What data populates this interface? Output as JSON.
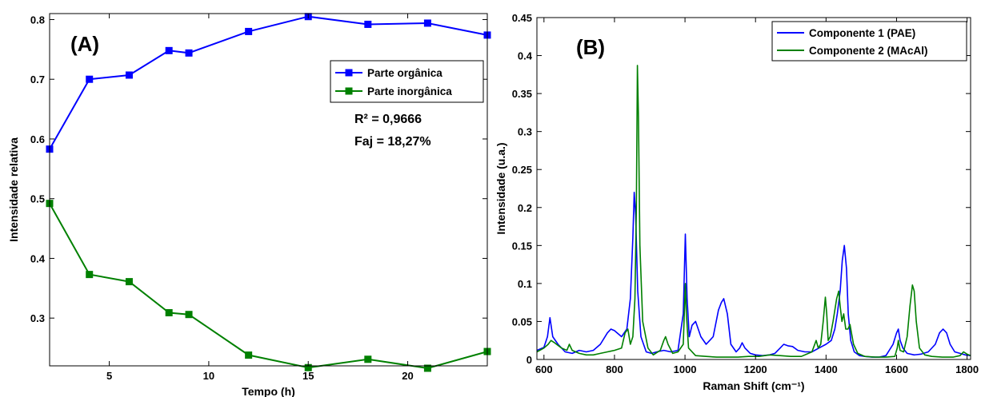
{
  "chart_data": [
    {
      "type": "line",
      "panel_label": "(A)",
      "xlabel": "Tempo (h)",
      "ylabel": "Intensidade relativa",
      "xlim": [
        2,
        24
      ],
      "ylim": [
        0.22,
        0.81
      ],
      "xticks": [
        5,
        10,
        15,
        20
      ],
      "yticks": [
        0.3,
        0.4,
        0.5,
        0.6,
        0.7,
        0.8
      ],
      "x": [
        2,
        4,
        6,
        8,
        9,
        12,
        15,
        18,
        21,
        24
      ],
      "series": [
        {
          "name": "Parte orgânica",
          "color": "#0000ff",
          "marker": "square",
          "values": [
            0.583,
            0.7,
            0.707,
            0.748,
            0.744,
            0.78,
            0.805,
            0.792,
            0.794,
            0.774
          ]
        },
        {
          "name": "Parte inorgânica",
          "color": "#008000",
          "marker": "square",
          "values": [
            0.492,
            0.373,
            0.361,
            0.309,
            0.306,
            0.238,
            0.217,
            0.231,
            0.216,
            0.244
          ]
        }
      ],
      "legend": "top-right",
      "annotations": [
        "R² = 0,9666",
        "Faj = 18,27%"
      ]
    },
    {
      "type": "line",
      "panel_label": "(B)",
      "xlabel": "Raman Shift (cm⁻¹)",
      "ylabel": "Intensidade (u.a.)",
      "xlim": [
        580,
        1810
      ],
      "ylim": [
        0,
        0.45
      ],
      "xticks": [
        600,
        800,
        1000,
        1200,
        1400,
        1600,
        1800
      ],
      "yticks": [
        0,
        0.05,
        0.1,
        0.15,
        0.2,
        0.25,
        0.3,
        0.35,
        0.4,
        0.45
      ],
      "ytick_labels": [
        "0",
        "0.05",
        "0.1",
        "0.15",
        "0.2",
        "0.25",
        "0.3",
        "0.35",
        "0.4",
        "0.45"
      ],
      "series": [
        {
          "name": "Componente 1 (PAE)",
          "color": "#0000ff",
          "x": [
            580,
            600,
            610,
            617,
            625,
            640,
            660,
            680,
            700,
            720,
            740,
            760,
            780,
            790,
            800,
            820,
            835,
            845,
            852,
            856,
            860,
            866,
            875,
            890,
            905,
            920,
            940,
            960,
            980,
            995,
            1001,
            1006,
            1012,
            1020,
            1030,
            1045,
            1060,
            1080,
            1095,
            1103,
            1110,
            1120,
            1130,
            1145,
            1155,
            1162,
            1170,
            1185,
            1200,
            1220,
            1240,
            1255,
            1270,
            1280,
            1292,
            1305,
            1320,
            1340,
            1360,
            1380,
            1400,
            1415,
            1425,
            1432,
            1440,
            1446,
            1452,
            1458,
            1463,
            1470,
            1480,
            1495,
            1510,
            1530,
            1550,
            1570,
            1590,
            1600,
            1605,
            1610,
            1618,
            1630,
            1650,
            1670,
            1690,
            1710,
            1722,
            1732,
            1742,
            1752,
            1765,
            1780,
            1795,
            1810
          ],
          "values": [
            0.012,
            0.016,
            0.03,
            0.055,
            0.03,
            0.02,
            0.01,
            0.008,
            0.012,
            0.01,
            0.012,
            0.02,
            0.035,
            0.04,
            0.038,
            0.03,
            0.04,
            0.08,
            0.16,
            0.22,
            0.19,
            0.09,
            0.03,
            0.01,
            0.008,
            0.01,
            0.012,
            0.01,
            0.012,
            0.06,
            0.165,
            0.08,
            0.03,
            0.045,
            0.05,
            0.03,
            0.02,
            0.03,
            0.065,
            0.075,
            0.08,
            0.06,
            0.02,
            0.01,
            0.015,
            0.022,
            0.015,
            0.008,
            0.006,
            0.005,
            0.006,
            0.008,
            0.015,
            0.02,
            0.018,
            0.017,
            0.012,
            0.01,
            0.01,
            0.015,
            0.02,
            0.025,
            0.04,
            0.06,
            0.09,
            0.13,
            0.15,
            0.12,
            0.06,
            0.025,
            0.01,
            0.005,
            0.004,
            0.003,
            0.003,
            0.005,
            0.02,
            0.035,
            0.04,
            0.025,
            0.015,
            0.008,
            0.006,
            0.007,
            0.01,
            0.02,
            0.035,
            0.04,
            0.035,
            0.02,
            0.01,
            0.008,
            0.006,
            0.005
          ]
        },
        {
          "name": "Componente 2 (MAcAl)",
          "color": "#008000",
          "x": [
            580,
            600,
            612,
            620,
            630,
            650,
            665,
            672,
            680,
            700,
            720,
            740,
            760,
            780,
            800,
            820,
            830,
            838,
            845,
            852,
            858,
            862,
            865,
            868,
            872,
            880,
            895,
            910,
            930,
            940,
            945,
            952,
            965,
            980,
            995,
            998,
            1001,
            1004,
            1010,
            1030,
            1060,
            1090,
            1120,
            1150,
            1180,
            1210,
            1240,
            1270,
            1300,
            1330,
            1360,
            1372,
            1378,
            1385,
            1392,
            1398,
            1402,
            1406,
            1412,
            1420,
            1430,
            1436,
            1440,
            1445,
            1450,
            1456,
            1462,
            1468,
            1472,
            1478,
            1490,
            1510,
            1540,
            1570,
            1595,
            1602,
            1605,
            1610,
            1620,
            1630,
            1638,
            1645,
            1650,
            1656,
            1665,
            1680,
            1700,
            1730,
            1760,
            1780,
            1790,
            1800,
            1810
          ],
          "values": [
            0.01,
            0.015,
            0.02,
            0.025,
            0.022,
            0.015,
            0.012,
            0.02,
            0.012,
            0.008,
            0.006,
            0.006,
            0.008,
            0.01,
            0.012,
            0.015,
            0.035,
            0.04,
            0.02,
            0.03,
            0.08,
            0.2,
            0.387,
            0.32,
            0.15,
            0.05,
            0.015,
            0.006,
            0.012,
            0.025,
            0.03,
            0.02,
            0.008,
            0.01,
            0.02,
            0.06,
            0.1,
            0.06,
            0.015,
            0.005,
            0.004,
            0.003,
            0.003,
            0.003,
            0.004,
            0.004,
            0.006,
            0.005,
            0.004,
            0.004,
            0.01,
            0.025,
            0.015,
            0.02,
            0.05,
            0.082,
            0.06,
            0.025,
            0.03,
            0.05,
            0.08,
            0.09,
            0.07,
            0.05,
            0.06,
            0.04,
            0.04,
            0.046,
            0.035,
            0.02,
            0.008,
            0.004,
            0.003,
            0.003,
            0.004,
            0.015,
            0.025,
            0.012,
            0.01,
            0.03,
            0.07,
            0.098,
            0.09,
            0.05,
            0.015,
            0.006,
            0.004,
            0.003,
            0.003,
            0.005,
            0.01,
            0.007,
            0.005
          ]
        }
      ],
      "legend": "top-right"
    }
  ]
}
